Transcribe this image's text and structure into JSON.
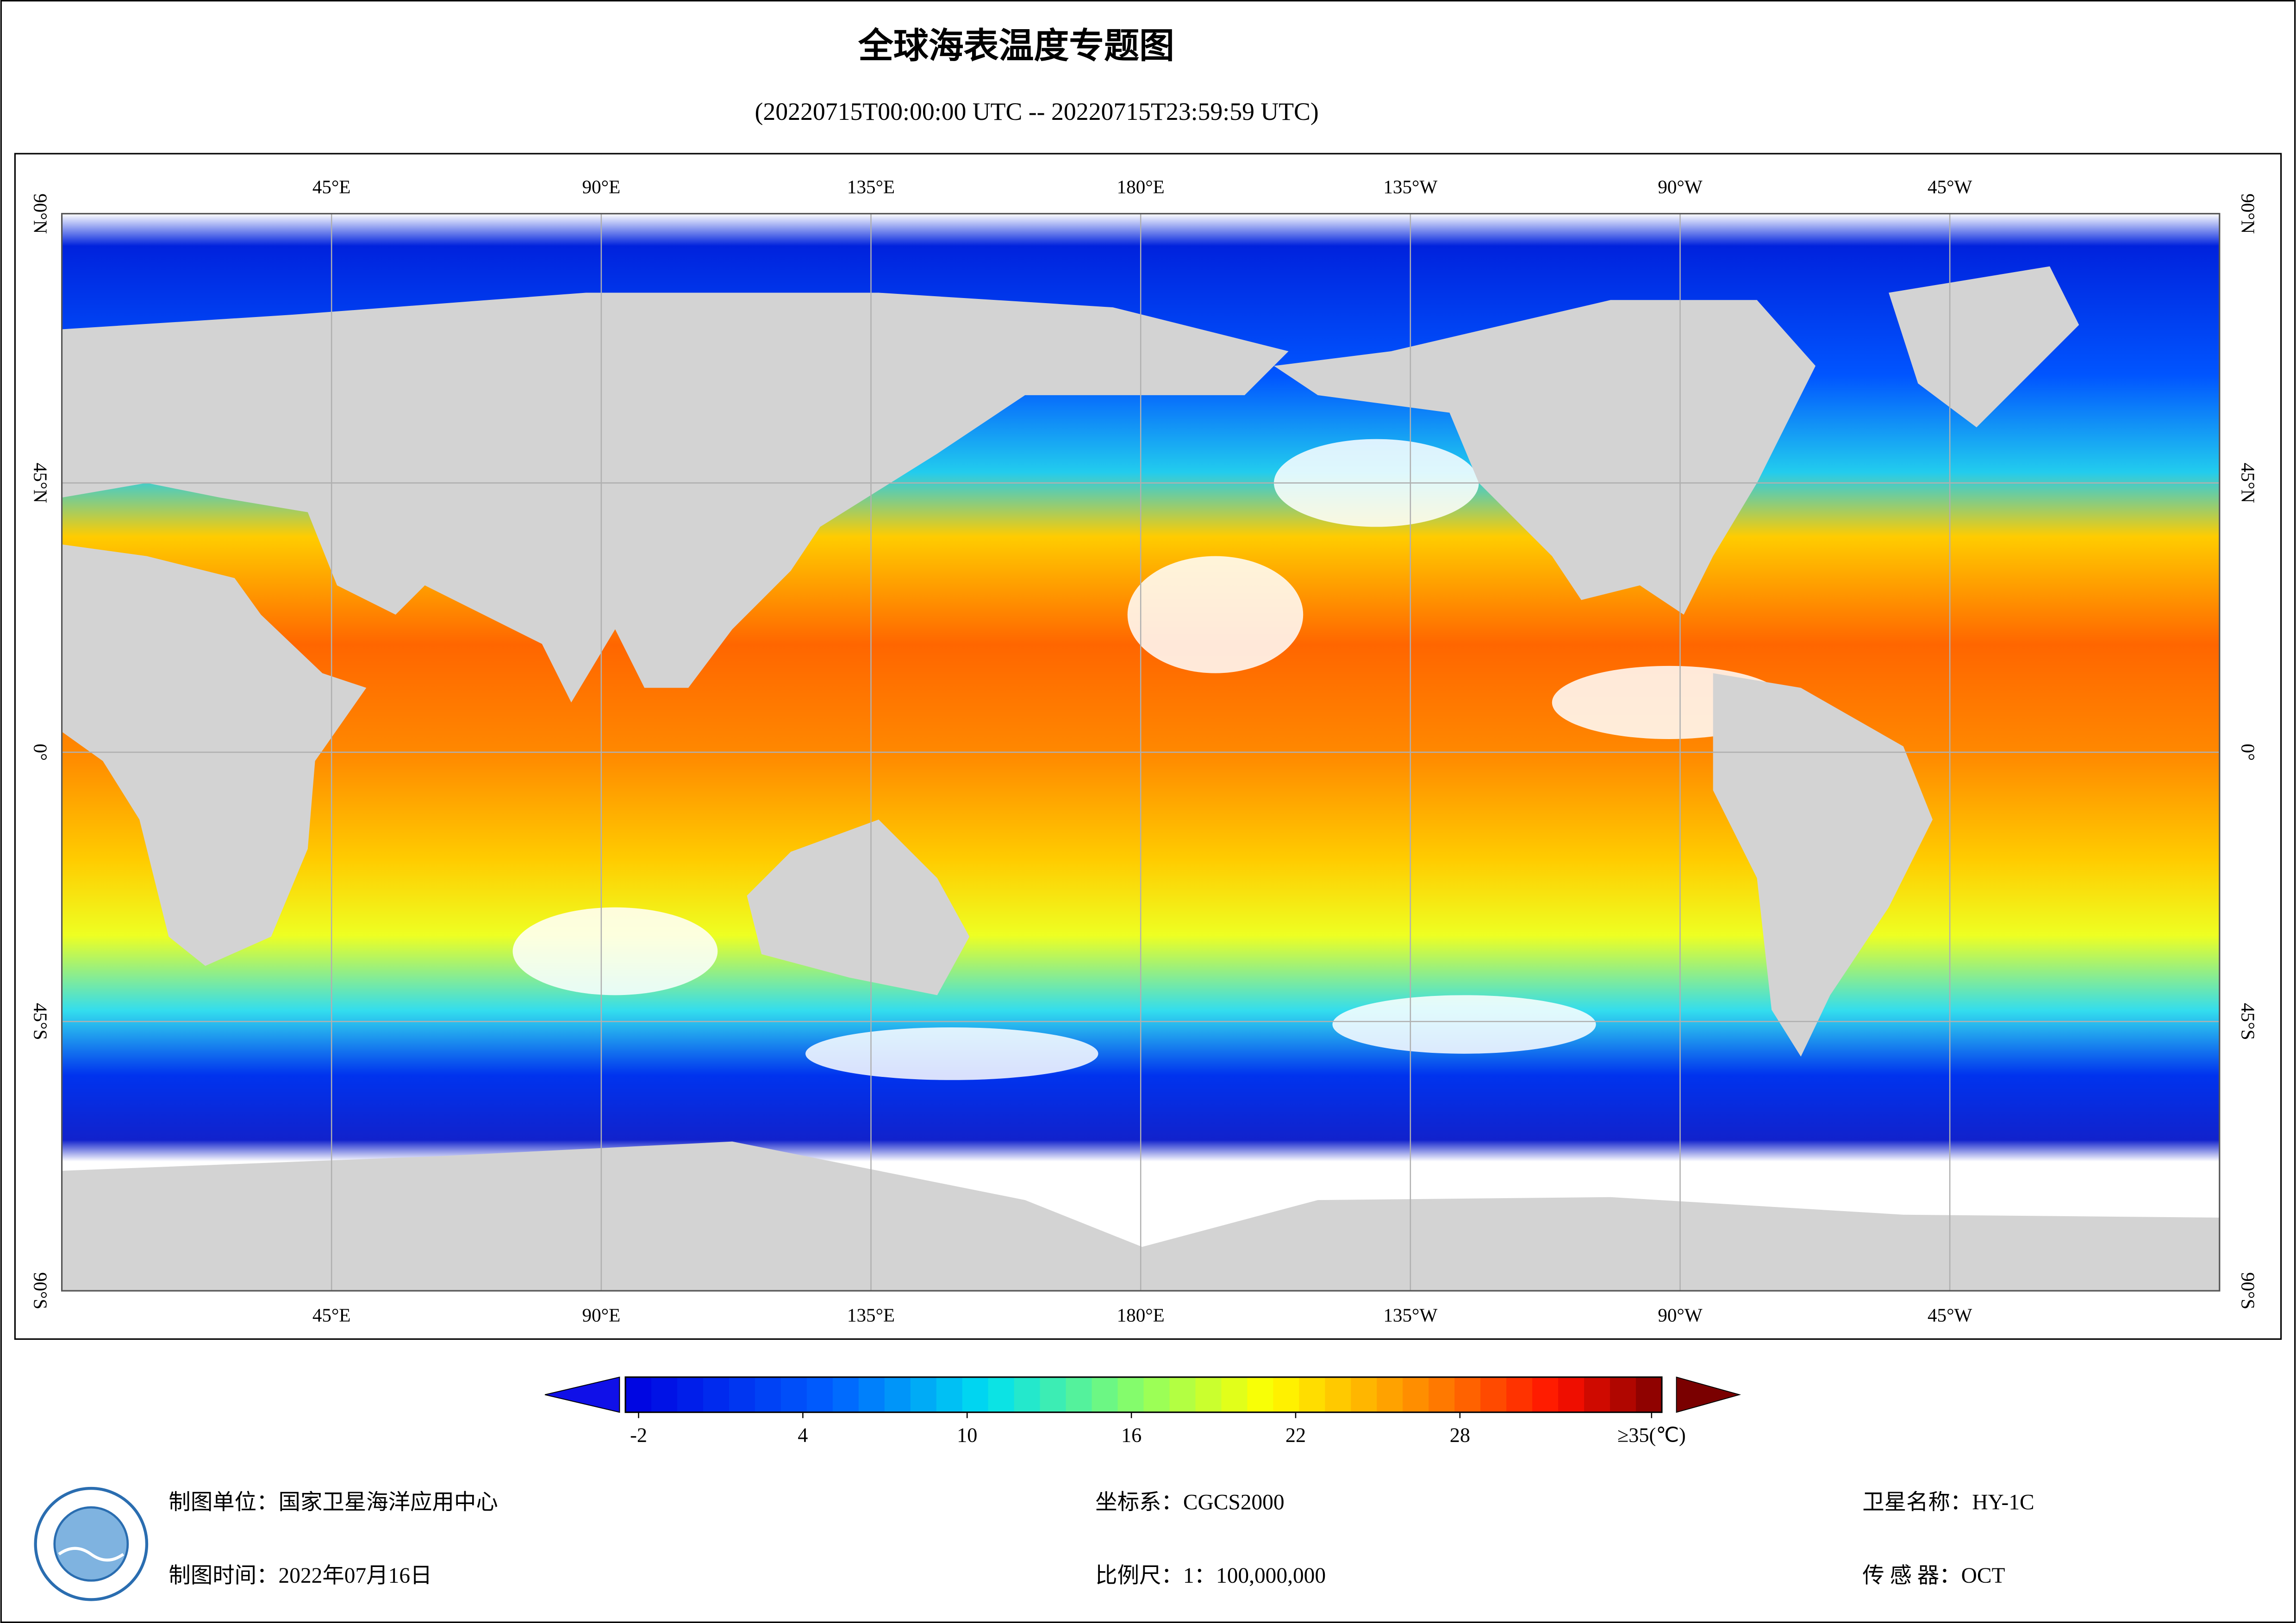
{
  "header": {
    "title": "全球海表温度专题图",
    "subtitle": "(20220715T00:00:00 UTC -- 20220715T23:59:59 UTC)"
  },
  "map": {
    "lonlim": [
      0,
      360
    ],
    "latlim": [
      -90,
      90
    ],
    "lonticks": [
      {
        "value": 45,
        "label": "45°E"
      },
      {
        "value": 90,
        "label": "90°E"
      },
      {
        "value": 135,
        "label": "135°E"
      },
      {
        "value": 180,
        "label": "180°E"
      },
      {
        "value": -135,
        "label": "135°W"
      },
      {
        "value": -90,
        "label": "90°W"
      },
      {
        "value": -45,
        "label": "45°W"
      }
    ],
    "latticks": [
      {
        "value": 90,
        "label": "90°N"
      },
      {
        "value": 45,
        "label": "45°N"
      },
      {
        "value": 0,
        "label": "0°"
      },
      {
        "value": -45,
        "label": "45°S"
      },
      {
        "value": -90,
        "label": "90°S"
      }
    ]
  },
  "colorbar": {
    "lim": [
      -2,
      35
    ],
    "ticks": [
      -2,
      4,
      10,
      16,
      22,
      28,
      {
        "value": 35,
        "label": "≥35(℃)"
      }
    ]
  },
  "footer": {
    "unit": "制图单位：国家卫星海洋应用中心",
    "date": "制图时间：2022年07月16日",
    "crs": "坐标系：CGCS2000",
    "scale": "比例尺：1：100,000,000",
    "satellite": "卫星名称：HY-1C",
    "sensor": "传 感 器：OCT"
  }
}
